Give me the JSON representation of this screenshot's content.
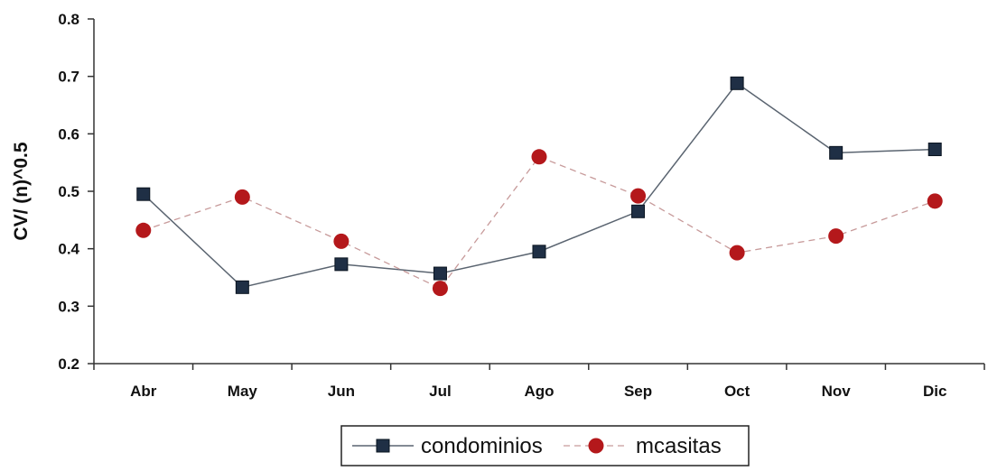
{
  "chart_data": {
    "type": "line",
    "title": "",
    "xlabel": "",
    "ylabel": "CV/ (n)^0.5",
    "categories": [
      "Abr",
      "May",
      "Jun",
      "Jul",
      "Ago",
      "Sep",
      "Oct",
      "Nov",
      "Dic"
    ],
    "ylim": [
      0.2,
      0.8
    ],
    "yticks": [
      "0.2",
      "0.3",
      "0.4",
      "0.5",
      "0.6",
      "0.7",
      "0.8"
    ],
    "grid": false,
    "legend_position": "bottom",
    "series": [
      {
        "name": "condominios",
        "values": [
          0.495,
          0.333,
          0.373,
          0.357,
          0.395,
          0.465,
          0.688,
          0.567,
          0.573
        ],
        "color": "#1f2f45",
        "marker": "square",
        "line": "solid"
      },
      {
        "name": "mcasitas",
        "values": [
          0.432,
          0.49,
          0.413,
          0.331,
          0.56,
          0.492,
          0.393,
          0.422,
          0.483
        ],
        "color": "#b4181b",
        "marker": "circle",
        "line": "dashed"
      }
    ]
  }
}
